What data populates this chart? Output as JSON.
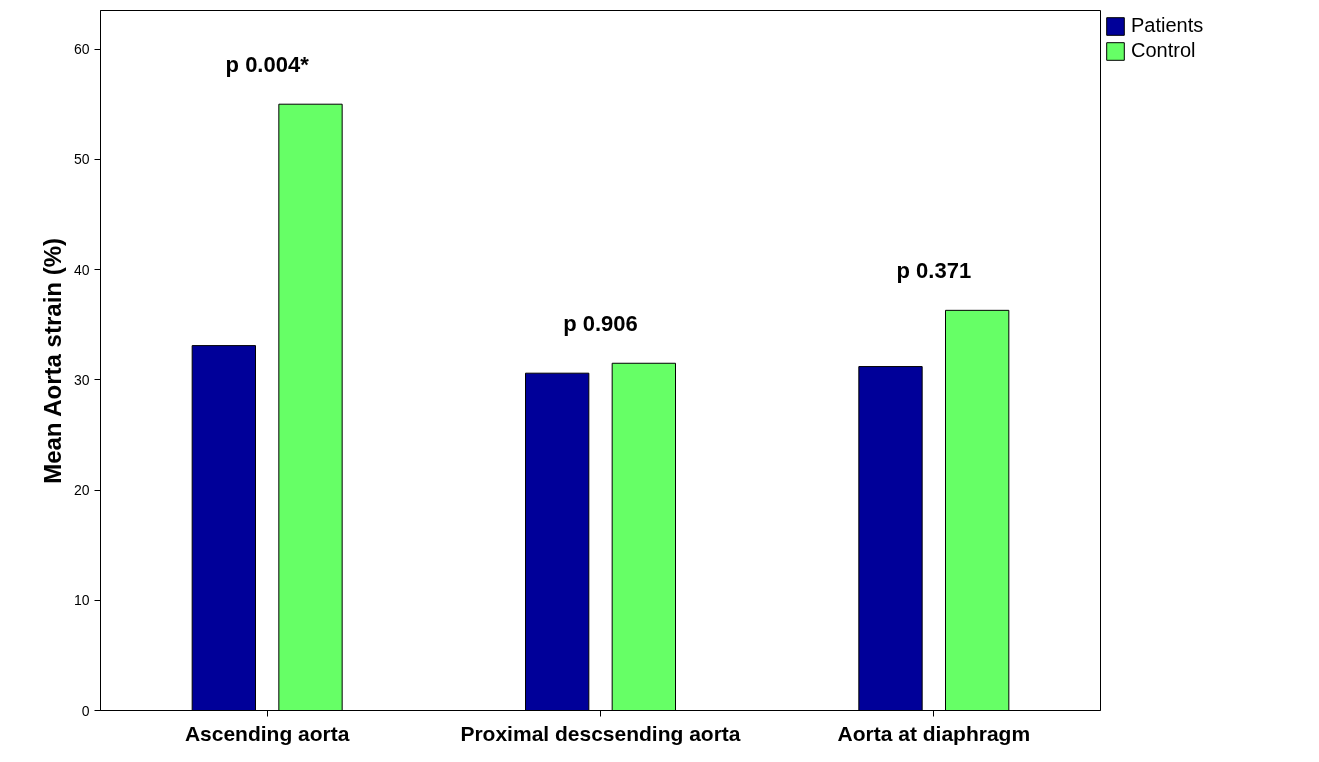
{
  "chart_data": {
    "type": "bar",
    "ylabel": "Mean Aorta strain (%)",
    "categories": [
      "Ascending aorta",
      "Proximal descsending aorta",
      "Aorta at diaphragm"
    ],
    "series": [
      {
        "name": "Patients",
        "color": "#000099",
        "values": [
          33.1,
          30.6,
          31.2
        ]
      },
      {
        "name": "Control",
        "color": "#66ff66",
        "values": [
          55.0,
          31.5,
          36.3
        ]
      }
    ],
    "ylim": [
      0,
      63.5
    ],
    "yticks": [
      0,
      10,
      20,
      30,
      40,
      50,
      60
    ],
    "grid": false,
    "legend": "top right",
    "annotations": [
      "p 0.004*",
      "p 0.906",
      "p 0.371"
    ]
  }
}
